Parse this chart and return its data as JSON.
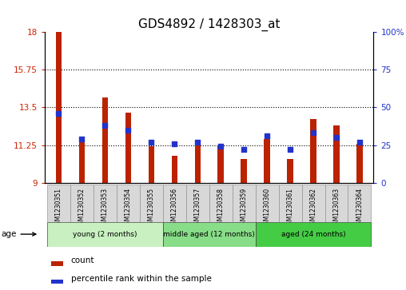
{
  "title": "GDS4892 / 1428303_at",
  "samples": [
    "GSM1230351",
    "GSM1230352",
    "GSM1230353",
    "GSM1230354",
    "GSM1230355",
    "GSM1230356",
    "GSM1230357",
    "GSM1230358",
    "GSM1230359",
    "GSM1230360",
    "GSM1230361",
    "GSM1230362",
    "GSM1230363",
    "GSM1230364"
  ],
  "count_values": [
    18.0,
    11.5,
    14.1,
    13.2,
    11.2,
    10.6,
    11.35,
    11.2,
    10.4,
    11.6,
    10.4,
    12.8,
    12.4,
    11.3
  ],
  "percentile_values": [
    46,
    29,
    38,
    35,
    27,
    26,
    27,
    24,
    22,
    31,
    22,
    33,
    30,
    27
  ],
  "y_min": 9,
  "y_max": 18,
  "y_ticks": [
    9,
    11.25,
    13.5,
    15.75,
    18
  ],
  "y2_ticks": [
    0,
    25,
    50,
    75,
    100
  ],
  "bar_color": "#bb2200",
  "dot_color": "#2233cc",
  "bg_color": "#ffffff",
  "groups": [
    {
      "label": "young (2 months)",
      "start": 0,
      "end": 5,
      "color": "#c8f0c0"
    },
    {
      "label": "middle aged (12 months)",
      "start": 5,
      "end": 9,
      "color": "#88dd88"
    },
    {
      "label": "aged (24 months)",
      "start": 9,
      "end": 14,
      "color": "#44cc44"
    }
  ],
  "legend_count": "count",
  "legend_pct": "percentile rank within the sample",
  "tick_fontsize": 7.5,
  "title_fontsize": 11
}
